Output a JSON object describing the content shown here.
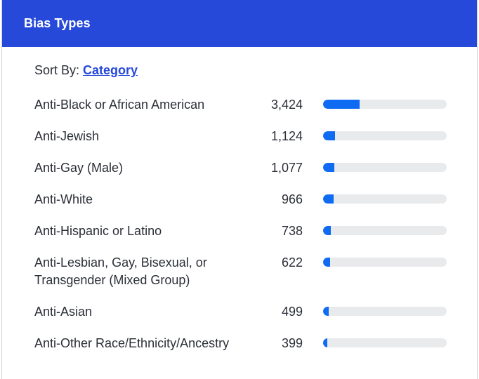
{
  "header": {
    "title": "Bias Types"
  },
  "sort": {
    "label": "Sort By:",
    "value": "Category"
  },
  "colors": {
    "header_bg": "#2649d9",
    "bar_fill": "#0f6cf2",
    "bar_track": "#e9eaec"
  },
  "bar_scale_max": 11500,
  "items": [
    {
      "label": "Anti-Black or African American",
      "value_text": "3,424",
      "value": 3424
    },
    {
      "label": "Anti-Jewish",
      "value_text": "1,124",
      "value": 1124
    },
    {
      "label": "Anti-Gay (Male)",
      "value_text": "1,077",
      "value": 1077
    },
    {
      "label": "Anti-White",
      "value_text": "966",
      "value": 966
    },
    {
      "label": "Anti-Hispanic or Latino",
      "value_text": "738",
      "value": 738
    },
    {
      "label": "Anti-Lesbian, Gay, Bisexual, or Transgender (Mixed Group)",
      "value_text": "622",
      "value": 622
    },
    {
      "label": "Anti-Asian",
      "value_text": "499",
      "value": 499
    },
    {
      "label": "Anti-Other Race/Ethnicity/Ancestry",
      "value_text": "399",
      "value": 399
    }
  ]
}
